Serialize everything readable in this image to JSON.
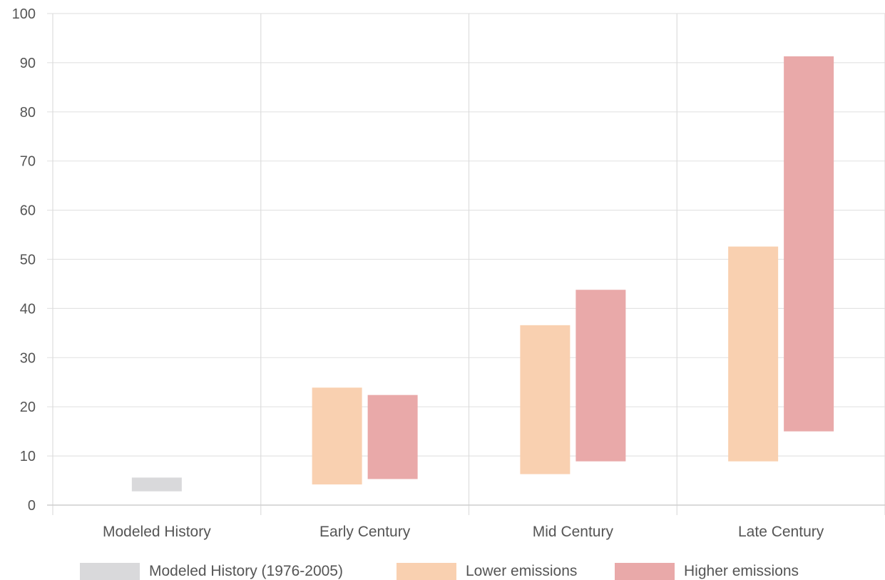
{
  "chart_data": {
    "type": "bar",
    "subtype": "floating-range",
    "categories": [
      "Modeled History",
      "Early Century",
      "Mid Century",
      "Late Century"
    ],
    "ylim": [
      0,
      100
    ],
    "yticks": [
      0,
      10,
      20,
      30,
      40,
      50,
      60,
      70,
      80,
      90,
      100
    ],
    "grid": true,
    "legend_position": "bottom",
    "series": [
      {
        "name": "Modeled History (1976-2005)",
        "color": "#d9d9db",
        "ranges": [
          [
            2.8,
            5.6
          ],
          null,
          null,
          null
        ]
      },
      {
        "name": "Lower emissions",
        "color": "#f9d0b0",
        "ranges": [
          null,
          [
            4.2,
            23.9
          ],
          [
            6.3,
            36.6
          ],
          [
            8.9,
            52.6
          ]
        ]
      },
      {
        "name": "Higher emissions",
        "color": "#e9a9a9",
        "ranges": [
          null,
          [
            5.3,
            22.4
          ],
          [
            8.9,
            43.8
          ],
          [
            15.0,
            91.3
          ]
        ]
      }
    ]
  }
}
